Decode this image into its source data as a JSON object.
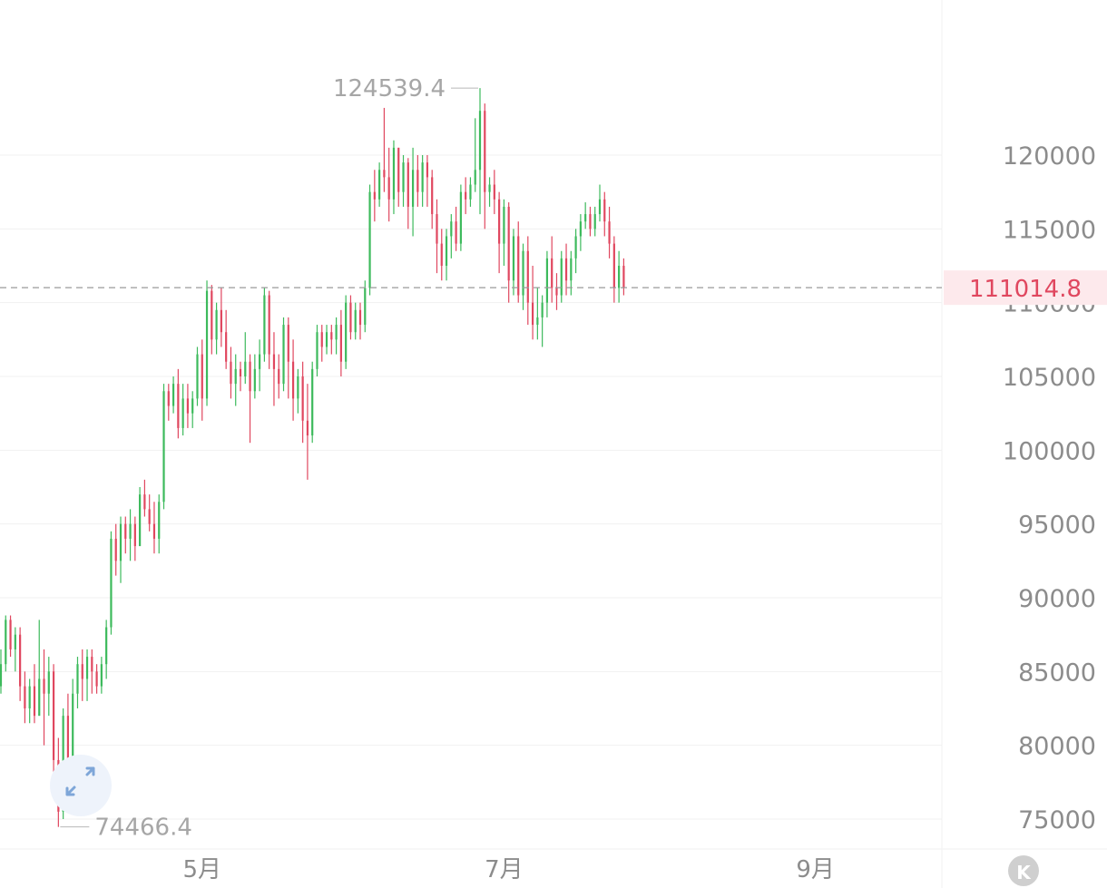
{
  "chart_data": {
    "type": "ohlc",
    "title": "",
    "xlabel": "",
    "ylabel": "",
    "ylim": [
      73000,
      130000
    ],
    "y_ticks": [
      "75000",
      "80000",
      "85000",
      "90000",
      "95000",
      "100000",
      "105000",
      "110000",
      "115000",
      "120000"
    ],
    "x_ticks": [
      "5月",
      "7月",
      "9月"
    ],
    "annotations": {
      "high_label": "124539.4",
      "low_label": "74466.4",
      "last_price_label": "111014.8"
    },
    "max_price": 124539.4,
    "min_price": 74466.4,
    "last_price": 111014.8,
    "up_color": "#3dba5c",
    "down_color": "#e0475f",
    "last_price_color": "#e0475f",
    "last_price_bg": "#fde9ec",
    "series": [
      {
        "values": [
          [
            84000,
            86500,
            83500,
            85500
          ],
          [
            85500,
            88800,
            85000,
            88500
          ],
          [
            88500,
            88800,
            86000,
            86500
          ],
          [
            86500,
            88000,
            85000,
            87500
          ],
          [
            87500,
            88000,
            83000,
            84000
          ],
          [
            84000,
            85000,
            81500,
            82500
          ],
          [
            82500,
            84500,
            81500,
            84000
          ],
          [
            84000,
            85500,
            81500,
            82000
          ],
          [
            82000,
            88500,
            82000,
            84500
          ],
          [
            84500,
            86500,
            80000,
            83500
          ]
        ]
      },
      {
        "values": [
          [
            83500,
            86000,
            82000,
            85000
          ],
          [
            85000,
            85500,
            78000,
            79000
          ],
          [
            79000,
            80500,
            74466.4,
            75500
          ],
          [
            75500,
            82500,
            75000,
            82000
          ],
          [
            82000,
            83500,
            76500,
            77500
          ],
          [
            77500,
            84500,
            77500,
            83500
          ],
          [
            83500,
            86000,
            82500,
            85500
          ],
          [
            85500,
            86500,
            83000,
            84500
          ],
          [
            84500,
            86500,
            83000,
            86000
          ],
          [
            86000,
            86500,
            83500,
            85000
          ]
        ]
      },
      {
        "values": [
          [
            85000,
            85500,
            83500,
            84000
          ],
          [
            84000,
            86000,
            83500,
            85500
          ],
          [
            85500,
            88500,
            84500,
            88000
          ],
          [
            88000,
            94500,
            87500,
            94000
          ],
          [
            94000,
            95000,
            91500,
            92500
          ],
          [
            92500,
            95500,
            91000,
            95000
          ],
          [
            95000,
            95500,
            93000,
            94000
          ],
          [
            94000,
            96000,
            92500,
            95000
          ],
          [
            95000,
            95500,
            92500,
            93500
          ],
          [
            93500,
            97500,
            93500,
            97000
          ]
        ]
      },
      {
        "values": [
          [
            97000,
            98000,
            95500,
            96000
          ],
          [
            96000,
            97000,
            94500,
            95000
          ],
          [
            95000,
            96500,
            93000,
            94000
          ],
          [
            94000,
            97000,
            93000,
            96500
          ],
          [
            96500,
            104500,
            96000,
            104000
          ],
          [
            104000,
            104500,
            102000,
            103000
          ],
          [
            103000,
            105000,
            102500,
            104500
          ],
          [
            104500,
            105500,
            100800,
            101500
          ],
          [
            101500,
            104500,
            101000,
            103500
          ],
          [
            103500,
            104500,
            101500,
            102500
          ]
        ]
      },
      {
        "values": [
          [
            102500,
            104000,
            101500,
            103500
          ],
          [
            103500,
            107000,
            103000,
            106500
          ],
          [
            106500,
            107500,
            102000,
            103500
          ],
          [
            103500,
            111500,
            103000,
            110800
          ],
          [
            110800,
            111200,
            106500,
            107500
          ],
          [
            107500,
            110000,
            106500,
            109500
          ],
          [
            109500,
            111000,
            107000,
            108000
          ],
          [
            108000,
            109500,
            105500,
            106000
          ],
          [
            106000,
            107000,
            103500,
            104500
          ],
          [
            104500,
            106500,
            103000,
            105500
          ]
        ]
      },
      {
        "values": [
          [
            105500,
            106000,
            104000,
            105000
          ],
          [
            105000,
            108000,
            104500,
            106000
          ],
          [
            106000,
            106500,
            100500,
            104000
          ],
          [
            104000,
            106500,
            103500,
            105500
          ],
          [
            105500,
            107500,
            104000,
            106500
          ],
          [
            106500,
            111000,
            106000,
            110500
          ],
          [
            110500,
            110800,
            105500,
            106500
          ],
          [
            106500,
            108000,
            103000,
            105500
          ],
          [
            105500,
            106500,
            103500,
            104500
          ],
          [
            104500,
            109000,
            104000,
            108500
          ]
        ]
      },
      {
        "values": [
          [
            108500,
            109000,
            103500,
            106000
          ],
          [
            106000,
            107500,
            102000,
            103500
          ],
          [
            103500,
            105500,
            102500,
            105000
          ],
          [
            105000,
            106000,
            100500,
            102000
          ],
          [
            102000,
            104500,
            98000,
            101000
          ],
          [
            101000,
            106000,
            100500,
            105500
          ],
          [
            105500,
            108500,
            105000,
            108000
          ],
          [
            108000,
            108500,
            106000,
            107000
          ],
          [
            107000,
            108500,
            106500,
            108000
          ],
          [
            108000,
            108500,
            106500,
            107500
          ]
        ]
      },
      {
        "values": [
          [
            107500,
            109000,
            106500,
            108500
          ],
          [
            108500,
            109500,
            105000,
            106000
          ],
          [
            106000,
            110500,
            105500,
            110000
          ],
          [
            110000,
            110500,
            107500,
            108000
          ],
          [
            108000,
            110000,
            107500,
            109500
          ],
          [
            109500,
            110000,
            107500,
            108500
          ],
          [
            108500,
            111500,
            108000,
            111000
          ],
          [
            111000,
            118000,
            110500,
            117500
          ],
          [
            117500,
            119000,
            115500,
            117000
          ],
          [
            117000,
            119500,
            116500,
            119000
          ]
        ]
      },
      {
        "values": [
          [
            119000,
            123200,
            117500,
            118500
          ],
          [
            118500,
            120500,
            115500,
            117000
          ],
          [
            117000,
            121000,
            116000,
            120500
          ],
          [
            120500,
            120500,
            116500,
            117500
          ],
          [
            117500,
            120000,
            116500,
            119500
          ],
          [
            119500,
            119800,
            115000,
            116500
          ],
          [
            116500,
            120500,
            114500,
            119000
          ],
          [
            119000,
            120000,
            116500,
            117500
          ],
          [
            117500,
            120000,
            116500,
            119500
          ],
          [
            119500,
            120000,
            116500,
            118500
          ]
        ]
      },
      {
        "values": [
          [
            118500,
            119000,
            115000,
            116000
          ],
          [
            116000,
            117000,
            112000,
            114000
          ],
          [
            114000,
            115000,
            111500,
            112500
          ],
          [
            112500,
            115000,
            111500,
            114500
          ],
          [
            114500,
            116000,
            113000,
            115500
          ],
          [
            115500,
            116500,
            113500,
            114000
          ],
          [
            114000,
            118000,
            113500,
            117500
          ],
          [
            117500,
            118500,
            116000,
            117000
          ],
          [
            117000,
            118500,
            116500,
            118000
          ],
          [
            118000,
            122500,
            117500,
            119000
          ]
        ]
      },
      {
        "values": [
          [
            119000,
            124539.4,
            116000,
            123000
          ],
          [
            123000,
            123500,
            115000,
            117500
          ],
          [
            117500,
            118500,
            116500,
            118000
          ],
          [
            118000,
            119000,
            116000,
            117000
          ],
          [
            117000,
            117500,
            112000,
            114000
          ],
          [
            114000,
            117000,
            112500,
            116500
          ],
          [
            116500,
            116800,
            110000,
            111500
          ],
          [
            111500,
            115000,
            110500,
            114500
          ],
          [
            114500,
            115500,
            110000,
            110500
          ],
          [
            110500,
            114000,
            109500,
            113500
          ]
        ]
      },
      {
        "values": [
          [
            113500,
            114500,
            108500,
            110000
          ],
          [
            110000,
            112500,
            107500,
            108500
          ],
          [
            108500,
            111000,
            107500,
            109000
          ],
          [
            109000,
            110500,
            107000,
            110000
          ],
          [
            110000,
            113500,
            109000,
            113000
          ],
          [
            113000,
            114500,
            110000,
            111000
          ],
          [
            111000,
            112000,
            109500,
            110500
          ],
          [
            110500,
            113500,
            110000,
            113000
          ],
          [
            113000,
            114000,
            110500,
            111500
          ],
          [
            111500,
            113500,
            110500,
            113000
          ]
        ]
      },
      {
        "values": [
          [
            113000,
            115000,
            112000,
            114500
          ],
          [
            114500,
            116000,
            113500,
            115500
          ],
          [
            115500,
            116800,
            115000,
            116000
          ],
          [
            116000,
            116500,
            114500,
            115000
          ],
          [
            115000,
            116500,
            114500,
            116000
          ],
          [
            116000,
            118000,
            115500,
            117000
          ],
          [
            117000,
            117500,
            114500,
            115500
          ],
          [
            115500,
            116500,
            113000,
            114000
          ],
          [
            114000,
            114500,
            110000,
            111000
          ],
          [
            111000,
            113500,
            110000,
            112500
          ],
          [
            112500,
            113000,
            110500,
            111014.8
          ]
        ]
      }
    ]
  },
  "nav_button": {
    "label": "K"
  }
}
